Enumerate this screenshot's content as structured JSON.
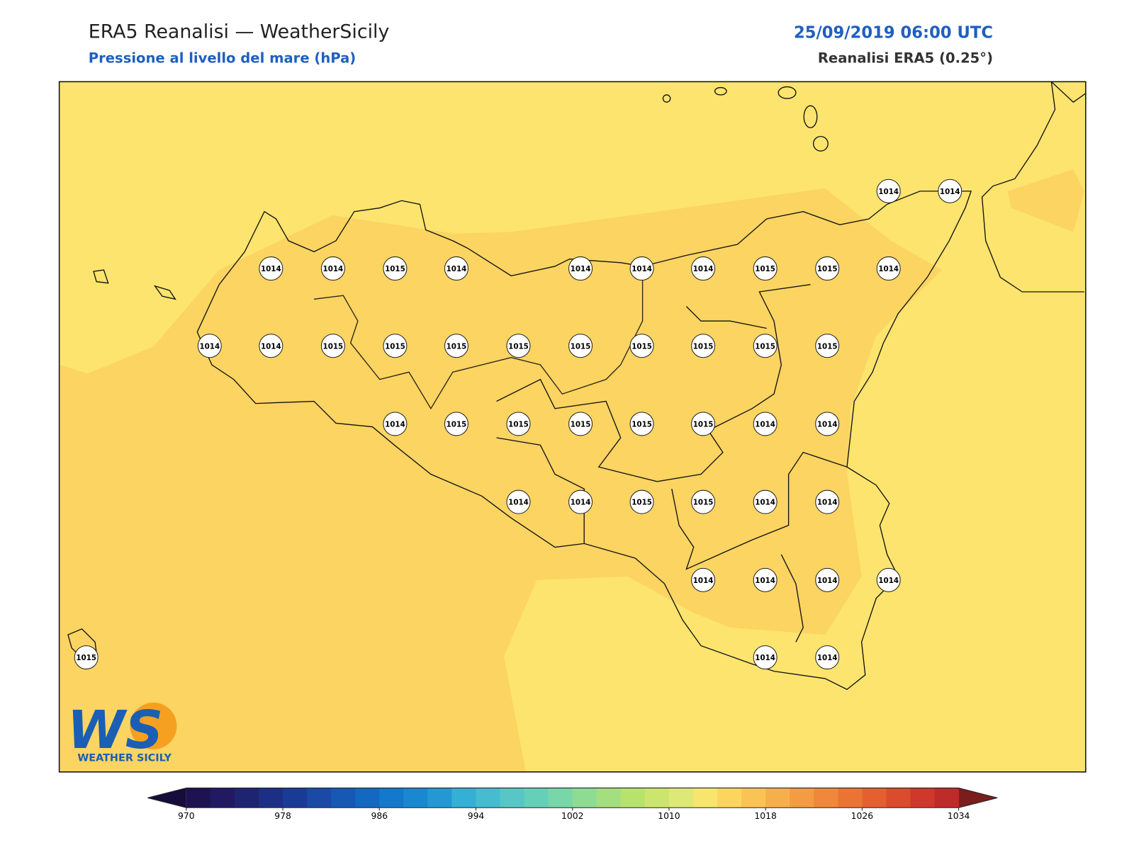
{
  "header": {
    "title": "ERA5 Reanalisi — WeatherSicily",
    "subtitle": "Pressione al livello del mare (hPa)",
    "datetime": "25/09/2019 06:00 UTC",
    "source": "Reanalisi ERA5 (0.25°)"
  },
  "map": {
    "points": [
      1014,
      1014,
      1014,
      1014,
      1015,
      1014,
      1014,
      1014,
      1014,
      1015,
      1015,
      1014,
      1014,
      1014,
      1015,
      1015,
      1015,
      1015,
      1015,
      1015,
      1015,
      1015,
      1015,
      1014,
      1015,
      1015,
      1015,
      1015,
      1015,
      1014,
      1014,
      1014,
      1014,
      1015,
      1015,
      1014,
      1014,
      1014,
      1014,
      1014,
      1014,
      1015,
      1014,
      1014
    ]
  },
  "colorbar": {
    "lim": [
      970,
      1034
    ],
    "ticks": [
      970,
      978,
      986,
      994,
      1002,
      1010,
      1018,
      1026,
      1034
    ],
    "colors": [
      "#1e1250",
      "#211a63",
      "#1f2470",
      "#1c2f85",
      "#193b95",
      "#1a4aa5",
      "#1758b5",
      "#1468c2",
      "#1478cc",
      "#1a88d0",
      "#2498d2",
      "#34b0d4",
      "#45bcd0",
      "#58c6c4",
      "#66cfb8",
      "#78d6a8",
      "#8edb94",
      "#a3df80",
      "#b8e26e",
      "#cce56c",
      "#dee877",
      "#f7e56e",
      "#fcd55f",
      "#f9c453",
      "#f6b04a",
      "#f39c42",
      "#ef883a",
      "#eb7434",
      "#e55f30",
      "#db4b2d",
      "#cf382b",
      "#bf2a2a"
    ],
    "under_color": "#160d3a",
    "over_color": "#7b1d1d"
  },
  "logo": {
    "mark": "WS",
    "name": "WEATHER SICILY"
  }
}
